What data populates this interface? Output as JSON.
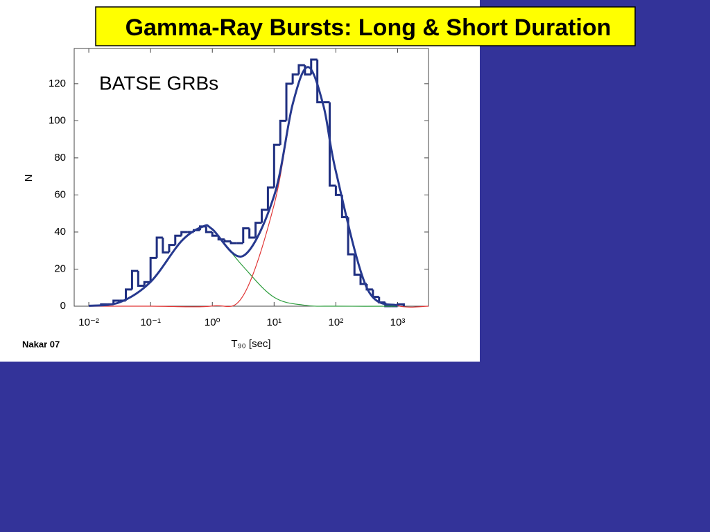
{
  "chart_data": {
    "type": "histogram",
    "title": "Gamma-Ray Bursts: Long & Short Duration",
    "annotation": "BATSE GRBs",
    "source": "Nakar 07",
    "xlabel": "T₉₀ [sec]",
    "ylabel": "N",
    "xscale": "log",
    "xlim": [
      0.0058,
      3160
    ],
    "ylim": [
      0,
      139
    ],
    "xticks": [
      {
        "value": 0.01,
        "label": "10⁻²"
      },
      {
        "value": 0.1,
        "label": "10⁻¹"
      },
      {
        "value": 1,
        "label": "10⁰"
      },
      {
        "value": 10,
        "label": "10¹"
      },
      {
        "value": 100,
        "label": "10²"
      },
      {
        "value": 1000,
        "label": "10³"
      }
    ],
    "yticks": [
      0,
      20,
      40,
      60,
      80,
      100,
      120
    ],
    "color": "#1f2f80",
    "bins": [
      0.0158,
      0.02,
      0.0251,
      0.0316,
      0.0398,
      0.0501,
      0.0631,
      0.0794,
      0.1,
      0.126,
      0.158,
      0.2,
      0.251,
      0.316,
      0.398,
      0.501,
      0.631,
      0.794,
      1,
      1.26,
      1.58,
      2,
      2.51,
      3.16,
      3.98,
      5.01,
      6.31,
      7.94,
      10,
      12.6,
      15.8,
      20,
      25.1,
      31.6,
      39.8,
      50.1,
      63.1,
      79.4,
      100,
      126,
      158,
      200,
      251,
      316,
      398,
      501,
      631,
      794,
      1000,
      1260
    ],
    "values": [
      1,
      1,
      3,
      3,
      9,
      19,
      11,
      13,
      26,
      37,
      29,
      33,
      38,
      40,
      40,
      41,
      43,
      40,
      38,
      36,
      35,
      34,
      34,
      42,
      37,
      45,
      52,
      64,
      87,
      100,
      120,
      125,
      130,
      125,
      133,
      110,
      110,
      65,
      60,
      48,
      28,
      17,
      12,
      9,
      5,
      2,
      0,
      0,
      1
    ],
    "series": [
      {
        "color": "#2e9e3e",
        "x": [
          0.01,
          0.0316,
          0.1,
          0.316,
          0.708,
          1,
          3.16,
          10,
          31.6,
          100,
          1000
        ],
        "values": [
          0.2,
          2.1,
          13.1,
          35.1,
          43,
          41.4,
          21.4,
          4.8,
          0.5,
          0,
          0
        ]
      },
      {
        "color": "#e03535",
        "x": [
          0.01,
          0.1,
          1,
          3.16,
          10,
          20,
          35.5,
          63.1,
          100,
          316,
          1000,
          3160
        ],
        "values": [
          0,
          0,
          0.1,
          5.7,
          54.7,
          108,
          129,
          108,
          72.7,
          10,
          0.3,
          0
        ]
      },
      {
        "color": "#26398f",
        "x": [
          0.01,
          0.0316,
          0.1,
          0.316,
          0.708,
          1,
          3.16,
          10,
          20,
          35.5,
          63.1,
          100,
          316,
          1000
        ],
        "values": [
          0.2,
          2.1,
          13.1,
          35.1,
          43,
          41.5,
          27.1,
          59.5,
          109,
          129,
          108,
          72.7,
          10,
          0.3
        ]
      }
    ]
  }
}
